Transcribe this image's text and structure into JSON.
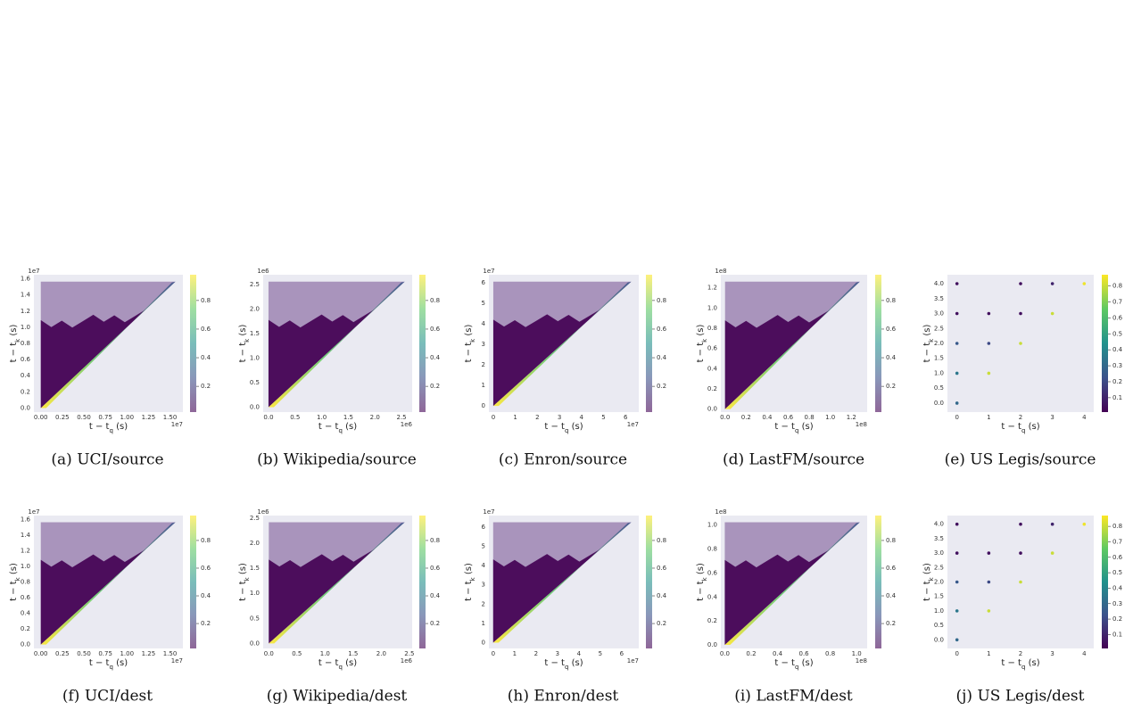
{
  "chart_data": [
    {
      "type": "heatmap",
      "caption": "(a) UCI/source",
      "xlabel": "t − tq (s)",
      "ylabel": "t − tk (s)",
      "x_offset": "1e7",
      "y_offset": "1e7",
      "xlim": [
        -0.08,
        1.65
      ],
      "xticks": [
        {
          "value": 0,
          "label": "0.00"
        },
        0.25,
        {
          "value": 0.5,
          "label": "0.50"
        },
        0.75,
        {
          "value": 1,
          "label": "1.00"
        },
        1.25,
        {
          "value": 1.5,
          "label": "1.50"
        }
      ],
      "ylim": [
        -0.05,
        1.65
      ],
      "yticks": [
        {
          "value": 0,
          "label": "0.0"
        },
        0.2,
        0.4,
        0.6,
        0.8,
        {
          "value": 1,
          "label": "1.0"
        },
        1.2,
        1.4,
        1.6
      ],
      "colorbar_lim": [
        0.02,
        0.98
      ],
      "colorbar_ticks": [
        0.2,
        0.4,
        0.6,
        0.8
      ]
    },
    {
      "type": "heatmap",
      "caption": "(b) Wikipedia/source",
      "xlabel": "t − tq (s)",
      "ylabel": "t − tk (s)",
      "x_offset": "1e6",
      "y_offset": "1e6",
      "xlim": [
        -0.1,
        2.7
      ],
      "xticks": [
        {
          "value": 0,
          "label": "0.0"
        },
        0.5,
        {
          "value": 1,
          "label": "1.0"
        },
        1.5,
        {
          "value": 2,
          "label": "2.0"
        },
        2.5
      ],
      "ylim": [
        -0.1,
        2.7
      ],
      "yticks": [
        {
          "value": 0,
          "label": "0.0"
        },
        0.5,
        {
          "value": 1,
          "label": "1.0"
        },
        1.5,
        {
          "value": 2,
          "label": "2.0"
        },
        2.5
      ],
      "colorbar_lim": [
        0.02,
        0.98
      ],
      "colorbar_ticks": [
        0.2,
        0.4,
        0.6,
        0.8
      ]
    },
    {
      "type": "heatmap",
      "caption": "(c) Enron/source",
      "xlabel": "t − tq (s)",
      "ylabel": "t − tk (s)",
      "x_offset": "1e7",
      "y_offset": "1e7",
      "xlim": [
        -0.2,
        6.6
      ],
      "xticks": [
        0,
        1,
        2,
        3,
        4,
        5,
        6
      ],
      "ylim": [
        -0.3,
        6.4
      ],
      "yticks": [
        0,
        1,
        2,
        3,
        4,
        5,
        6
      ],
      "colorbar_lim": [
        0.02,
        0.98
      ],
      "colorbar_ticks": [
        0.2,
        0.4,
        0.6,
        0.8
      ]
    },
    {
      "type": "heatmap",
      "caption": "(d) LastFM/source",
      "xlabel": "t − tq (s)",
      "ylabel": "t − tk (s)",
      "x_offset": "1e8",
      "y_offset": "1e8",
      "xlim": [
        -0.04,
        1.35
      ],
      "xticks": [
        {
          "value": 0,
          "label": "0.0"
        },
        0.2,
        0.4,
        0.6,
        0.8,
        {
          "value": 1,
          "label": "1.0"
        },
        1.2
      ],
      "ylim": [
        -0.03,
        1.33
      ],
      "yticks": [
        {
          "value": 0,
          "label": "0.0"
        },
        0.2,
        0.4,
        0.6,
        0.8,
        {
          "value": 1,
          "label": "1.0"
        },
        1.2
      ],
      "colorbar_lim": [
        0.02,
        0.98
      ],
      "colorbar_ticks": [
        0.2,
        0.4,
        0.6,
        0.8
      ]
    },
    {
      "type": "scatter",
      "caption": "(e) US Legis/source",
      "xlabel": "t − tq (s)",
      "ylabel": "t − tk (s)",
      "xlim": [
        -0.3,
        4.3
      ],
      "xticks": [
        0,
        1,
        2,
        3,
        4
      ],
      "ylim": [
        -0.3,
        4.3
      ],
      "yticks": [
        {
          "value": 0,
          "label": "0.0"
        },
        0.5,
        {
          "value": 1,
          "label": "1.0"
        },
        1.5,
        {
          "value": 2,
          "label": "2.0"
        },
        2.5,
        {
          "value": 3,
          "label": "3.0"
        },
        3.5,
        {
          "value": 4,
          "label": "4.0"
        }
      ],
      "colorbar_lim": [
        0.01,
        0.87
      ],
      "colorbar_ticks": [
        0.1,
        0.2,
        0.3,
        0.4,
        0.5,
        0.6,
        0.7,
        0.8
      ],
      "x": [
        0,
        0,
        0,
        0,
        0,
        1,
        1,
        1,
        2,
        2,
        2,
        3,
        3,
        4
      ],
      "y": [
        0,
        1,
        2,
        3,
        4,
        1,
        2,
        3,
        2,
        3,
        4,
        3,
        4,
        4
      ],
      "values": [
        0.3,
        0.35,
        0.25,
        0.05,
        0.05,
        0.8,
        0.2,
        0.05,
        0.8,
        0.05,
        0.05,
        0.8,
        0.1,
        0.85
      ]
    },
    {
      "type": "heatmap",
      "caption": "(f) UCI/dest",
      "xlabel": "t − tq (s)",
      "ylabel": "t − tk (s)",
      "x_offset": "1e7",
      "y_offset": "1e7",
      "xlim": [
        -0.08,
        1.65
      ],
      "xticks": [
        {
          "value": 0,
          "label": "0.00"
        },
        0.25,
        {
          "value": 0.5,
          "label": "0.50"
        },
        0.75,
        {
          "value": 1,
          "label": "1.00"
        },
        1.25,
        {
          "value": 1.5,
          "label": "1.50"
        }
      ],
      "ylim": [
        -0.05,
        1.65
      ],
      "yticks": [
        {
          "value": 0,
          "label": "0.0"
        },
        0.2,
        0.4,
        0.6,
        0.8,
        {
          "value": 1,
          "label": "1.0"
        },
        1.2,
        1.4,
        1.6
      ],
      "colorbar_lim": [
        0.02,
        0.98
      ],
      "colorbar_ticks": [
        0.2,
        0.4,
        0.6,
        0.8
      ]
    },
    {
      "type": "heatmap",
      "caption": "(g) Wikipedia/dest",
      "xlabel": "t − tq (s)",
      "ylabel": "t − tk (s)",
      "x_offset": "1e6",
      "y_offset": "1e6",
      "xlim": [
        -0.1,
        2.55
      ],
      "xticks": [
        {
          "value": 0,
          "label": "0.0"
        },
        0.5,
        {
          "value": 1,
          "label": "1.0"
        },
        1.5,
        {
          "value": 2,
          "label": "2.0"
        },
        2.5
      ],
      "ylim": [
        -0.1,
        2.55
      ],
      "yticks": [
        {
          "value": 0,
          "label": "0.0"
        },
        0.5,
        {
          "value": 1,
          "label": "1.0"
        },
        1.5,
        {
          "value": 2,
          "label": "2.0"
        },
        2.5
      ],
      "colorbar_lim": [
        0.02,
        0.98
      ],
      "colorbar_ticks": [
        0.2,
        0.4,
        0.6,
        0.8
      ]
    },
    {
      "type": "heatmap",
      "caption": "(h) Enron/dest",
      "xlabel": "t − tq (s)",
      "ylabel": "t − tk (s)",
      "x_offset": "1e7",
      "y_offset": "1e7",
      "xlim": [
        -0.2,
        6.8
      ],
      "xticks": [
        0,
        1,
        2,
        3,
        4,
        5,
        6
      ],
      "ylim": [
        -0.3,
        6.6
      ],
      "yticks": [
        0,
        1,
        2,
        3,
        4,
        5,
        6
      ],
      "colorbar_lim": [
        0.02,
        0.98
      ],
      "colorbar_ticks": [
        0.2,
        0.4,
        0.6,
        0.8
      ]
    },
    {
      "type": "heatmap",
      "caption": "(i) LastFM/dest",
      "xlabel": "t − tq (s)",
      "ylabel": "t − tk (s)",
      "x_offset": "1e8",
      "y_offset": "1e8",
      "xlim": [
        -0.03,
        1.08
      ],
      "xticks": [
        {
          "value": 0,
          "label": "0.0"
        },
        0.2,
        0.4,
        0.6,
        0.8,
        {
          "value": 1,
          "label": "1.0"
        }
      ],
      "ylim": [
        -0.03,
        1.08
      ],
      "yticks": [
        {
          "value": 0,
          "label": "0.0"
        },
        0.2,
        0.4,
        0.6,
        0.8,
        {
          "value": 1,
          "label": "1.0"
        }
      ],
      "colorbar_lim": [
        0.02,
        0.98
      ],
      "colorbar_ticks": [
        0.2,
        0.4,
        0.6,
        0.8
      ]
    },
    {
      "type": "scatter",
      "caption": "(j) US Legis/dest",
      "xlabel": "t − tq (s)",
      "ylabel": "t − tk (s)",
      "xlim": [
        -0.3,
        4.3
      ],
      "xticks": [
        0,
        1,
        2,
        3,
        4
      ],
      "ylim": [
        -0.3,
        4.3
      ],
      "yticks": [
        {
          "value": 0,
          "label": "0.0"
        },
        0.5,
        {
          "value": 1,
          "label": "1.0"
        },
        1.5,
        {
          "value": 2,
          "label": "2.0"
        },
        2.5,
        {
          "value": 3,
          "label": "3.0"
        },
        3.5,
        {
          "value": 4,
          "label": "4.0"
        }
      ],
      "colorbar_lim": [
        0.01,
        0.87
      ],
      "colorbar_ticks": [
        0.1,
        0.2,
        0.3,
        0.4,
        0.5,
        0.6,
        0.7,
        0.8
      ],
      "x": [
        0,
        0,
        0,
        0,
        0,
        1,
        1,
        1,
        2,
        2,
        2,
        3,
        3,
        4
      ],
      "y": [
        0,
        1,
        2,
        3,
        4,
        1,
        2,
        3,
        2,
        3,
        4,
        3,
        4,
        4
      ],
      "values": [
        0.3,
        0.35,
        0.25,
        0.05,
        0.05,
        0.8,
        0.2,
        0.05,
        0.8,
        0.05,
        0.05,
        0.8,
        0.1,
        0.85
      ]
    }
  ]
}
